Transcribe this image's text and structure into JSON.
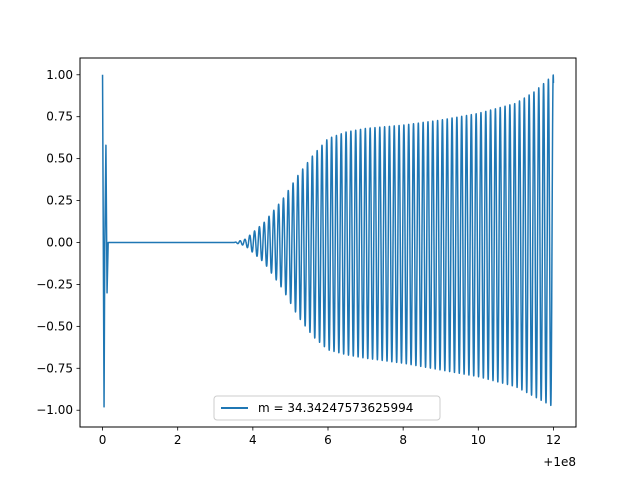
{
  "chart_data": {
    "type": "line",
    "title": "",
    "xlabel": "",
    "ylabel": "",
    "x_offset_label": "+1e8",
    "xlim": [
      -0.6,
      12.6
    ],
    "ylim": [
      -1.1,
      1.1
    ],
    "x_ticks": [
      0,
      2,
      4,
      6,
      8,
      10,
      12
    ],
    "x_tick_labels": [
      "0",
      "2",
      "4",
      "6",
      "8",
      "10",
      "12"
    ],
    "y_ticks": [
      1.0,
      0.75,
      0.5,
      0.25,
      0.0,
      -0.25,
      -0.5,
      -0.75,
      -1.0
    ],
    "y_tick_labels": [
      "1.00",
      "0.75",
      "0.50",
      "0.25",
      "0.00",
      "−0.25",
      "−0.50",
      "−0.75",
      "−1.00"
    ],
    "grid": false,
    "legend_position": "bottom-center",
    "series": [
      {
        "name": "m = 34.34247573625994",
        "color": "#1f77b4",
        "segments": [
          {
            "kind": "points",
            "points": [
              [
                0.0,
                1.0
              ],
              [
                0.02,
                0.0
              ],
              [
                0.04,
                -0.98
              ],
              [
                0.06,
                0.0
              ],
              [
                0.09,
                0.58
              ],
              [
                0.12,
                -0.3
              ],
              [
                0.15,
                0.0
              ]
            ]
          },
          {
            "kind": "points",
            "points": [
              [
                0.15,
                0.0
              ],
              [
                3.5,
                0.0
              ]
            ]
          },
          {
            "kind": "oscillation",
            "x_start": 3.5,
            "x_end": 12.0,
            "envelope_x": [
              3.5,
              3.8,
              4.3,
              4.8,
              5.2,
              5.6,
              6.0,
              6.5,
              7.0,
              8.0,
              9.0,
              10.0,
              11.0,
              11.5,
              12.0
            ],
            "envelope_upper": [
              0.0,
              0.02,
              0.12,
              0.26,
              0.4,
              0.52,
              0.62,
              0.66,
              0.68,
              0.7,
              0.73,
              0.77,
              0.83,
              0.9,
              1.0
            ],
            "envelope_lower": [
              0.0,
              -0.02,
              -0.12,
              -0.28,
              -0.44,
              -0.56,
              -0.64,
              -0.67,
              -0.69,
              -0.72,
              -0.76,
              -0.8,
              -0.86,
              -0.92,
              -0.98
            ],
            "frequency": 7.8
          }
        ]
      }
    ]
  }
}
